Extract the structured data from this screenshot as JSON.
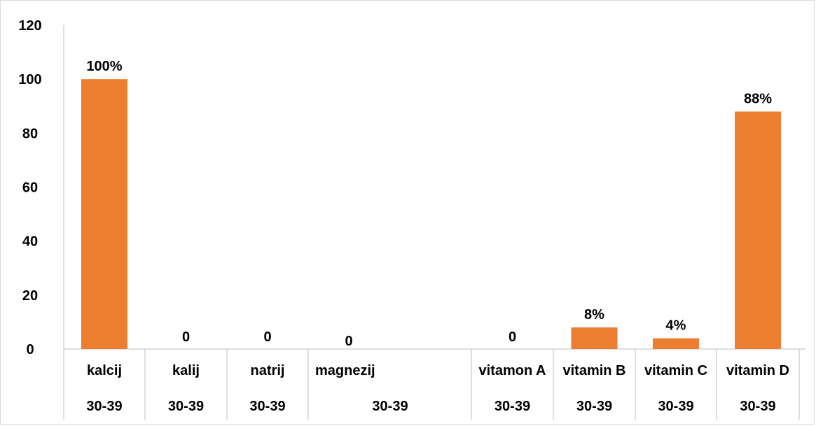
{
  "chart_data": {
    "type": "bar",
    "categories": [
      "kalcij",
      "kalij",
      "natrij",
      "magnezij",
      "vitamon A",
      "vitamin B",
      "vitamin C",
      "vitamin D"
    ],
    "group_labels": [
      "30-39",
      "30-39",
      "30-39",
      "30-39",
      "30-39",
      "30-39",
      "30-39",
      "30-39"
    ],
    "values": [
      100,
      0,
      0,
      0,
      0,
      8,
      4,
      88
    ],
    "data_labels": [
      "100%",
      "0",
      "0",
      "0",
      "0",
      "8%",
      "4%",
      "88%"
    ],
    "ylim": [
      0,
      120
    ],
    "yticks": [
      0,
      20,
      40,
      60,
      80,
      100,
      120
    ],
    "grid": false,
    "bar_color": "#ed7d31",
    "axis_color": "#bfbfbf"
  }
}
